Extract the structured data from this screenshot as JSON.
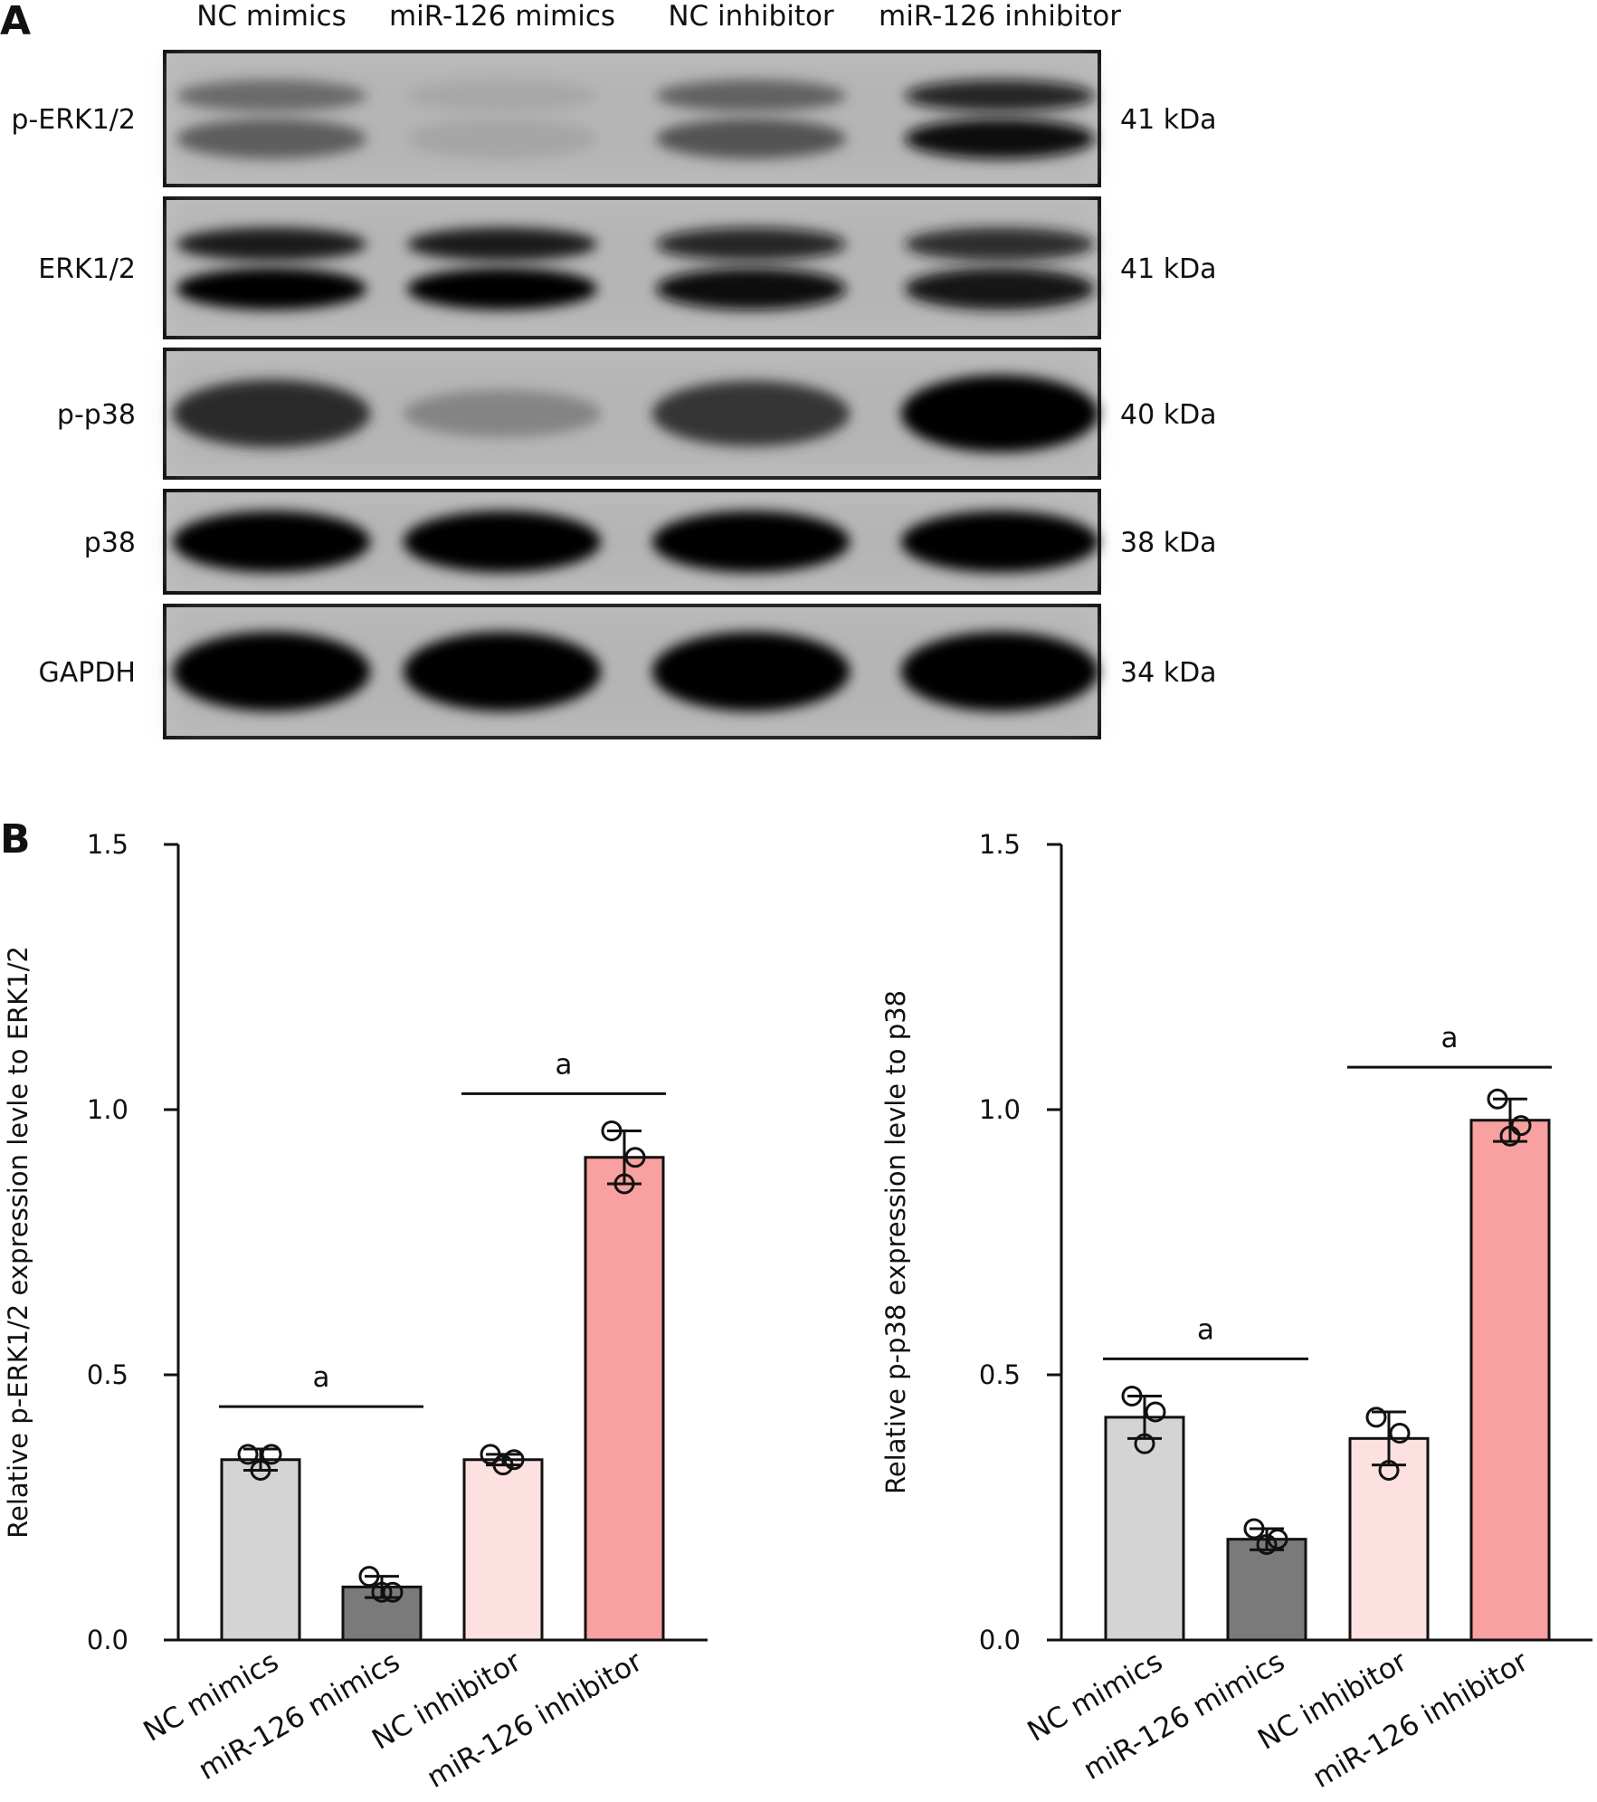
{
  "panel_a": {
    "label": "A",
    "lane_labels": [
      "NC mimics",
      "miR-126 mimics",
      "NC inhibitor",
      "miR-126 inhibitor"
    ],
    "blots": [
      {
        "protein": "p-ERK1/2",
        "size": "41 kDa",
        "intensities": [
          0.55,
          0.18,
          0.6,
          0.95
        ],
        "double_band": true
      },
      {
        "protein": "ERK1/2",
        "size": "41 kDa",
        "intensities": [
          1.0,
          1.0,
          0.95,
          0.9
        ],
        "double_band": true
      },
      {
        "protein": "p-p38",
        "size": "40 kDa",
        "intensities": [
          0.8,
          0.35,
          0.75,
          1.0
        ],
        "double_band": false
      },
      {
        "protein": "p38",
        "size": "38 kDa",
        "intensities": [
          1.0,
          1.0,
          1.0,
          1.0
        ],
        "double_band": false
      },
      {
        "protein": "GAPDH",
        "size": "34 kDa",
        "intensities": [
          1.0,
          1.0,
          1.0,
          1.0
        ],
        "double_band": false
      }
    ]
  },
  "panel_b_label": "B",
  "chart_data": [
    {
      "type": "bar",
      "title": "",
      "xlabel": "",
      "ylabel": "Relative p-ERK1/2 expression levle to ERK1/2",
      "ylim": [
        0,
        1.5
      ],
      "yticks": [
        "0.0",
        "0.5",
        "1.0",
        "1.5"
      ],
      "categories": [
        "NC mimics",
        "miR-126 mimics",
        "NC inhibitor",
        "miR-126 inhibitor"
      ],
      "values": [
        0.34,
        0.1,
        0.34,
        0.91
      ],
      "error": [
        0.02,
        0.02,
        0.01,
        0.05
      ],
      "points": [
        [
          0.35,
          0.35,
          0.32
        ],
        [
          0.12,
          0.09,
          0.09
        ],
        [
          0.35,
          0.34,
          0.33
        ],
        [
          0.96,
          0.91,
          0.86
        ]
      ],
      "colors": [
        "#d4d4d4",
        "#7a7a7a",
        "#fde0e0",
        "#f9a0a0"
      ],
      "significance": [
        {
          "from": 0,
          "to": 1,
          "y": 0.44,
          "label": "a"
        },
        {
          "from": 2,
          "to": 3,
          "y": 1.03,
          "label": "a"
        }
      ]
    },
    {
      "type": "bar",
      "title": "",
      "xlabel": "",
      "ylabel": "Relative p-p38 expression levle to p38",
      "ylim": [
        0,
        1.5
      ],
      "yticks": [
        "0.0",
        "0.5",
        "1.0",
        "1.5"
      ],
      "categories": [
        "NC mimics",
        "miR-126 mimics",
        "NC inhibitor",
        "miR-126 inhibitor"
      ],
      "values": [
        0.42,
        0.19,
        0.38,
        0.98
      ],
      "error": [
        0.04,
        0.02,
        0.05,
        0.04
      ],
      "points": [
        [
          0.46,
          0.43,
          0.37
        ],
        [
          0.21,
          0.19,
          0.18
        ],
        [
          0.42,
          0.39,
          0.32
        ],
        [
          1.02,
          0.97,
          0.95
        ]
      ],
      "colors": [
        "#d4d4d4",
        "#7a7a7a",
        "#fde0e0",
        "#f9a0a0"
      ],
      "significance": [
        {
          "from": 0,
          "to": 1,
          "y": 0.53,
          "label": "a"
        },
        {
          "from": 2,
          "to": 3,
          "y": 1.08,
          "label": "a"
        }
      ]
    }
  ]
}
